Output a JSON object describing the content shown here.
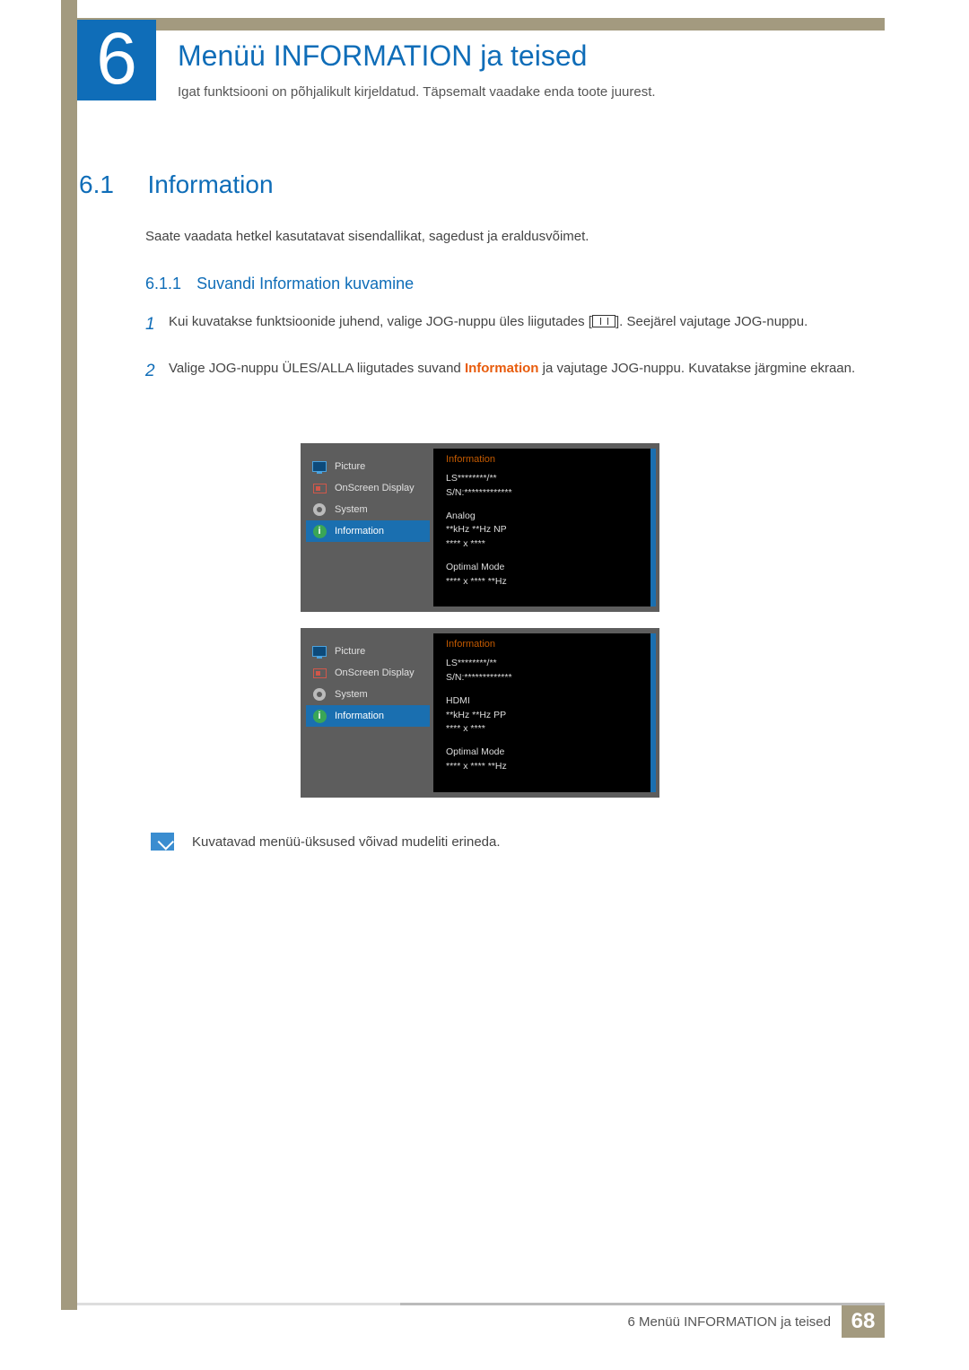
{
  "colors": {
    "accent_blue": "#0f6db8",
    "khaki": "#a39a7f",
    "orange": "#e85c0c",
    "osd_bg": "#5d5d5d",
    "osd_panel": "#000000",
    "osd_sel": "#1a6fb0",
    "osd_title": "#c45a00"
  },
  "chapter": {
    "number": "6",
    "title": "Menüü INFORMATION ja teised",
    "subtitle": "Igat funktsiooni on põhjalikult kirjeldatud. Täpsemalt vaadake enda toote juurest."
  },
  "section": {
    "number": "6.1",
    "title": "Information",
    "intro": "Saate vaadata hetkel kasutatavat sisendallikat, sagedust ja eraldusvõimet."
  },
  "subsection": {
    "number": "6.1.1",
    "title": "Suvandi Information kuvamine"
  },
  "steps": [
    {
      "n": "1",
      "pre": "Kui kuvatakse funktsioonide juhend, valige JOG-nuppu üles liigutades [",
      "post": "]. Seejärel vajutage JOG-nuppu."
    },
    {
      "n": "2",
      "pre": "Valige JOG-nuppu ÜLES/ALLA liigutades suvand ",
      "hl": "Information",
      "post": " ja vajutage JOG-nuppu. Kuvatakse järgmine ekraan."
    }
  ],
  "osd": {
    "menu": [
      {
        "label": "Picture",
        "icon": "monitor"
      },
      {
        "label": "OnScreen Display",
        "icon": "osd"
      },
      {
        "label": "System",
        "icon": "gear"
      },
      {
        "label": "Information",
        "icon": "info",
        "selected": true
      }
    ],
    "panels": [
      {
        "title": "Information",
        "lines": {
          "model": "LS********/**",
          "serial": "S/N:*************",
          "source": "Analog",
          "freq": "**kHz **Hz NP",
          "res": "**** x ****",
          "mode_label": "Optimal Mode",
          "mode_val": "**** x **** **Hz"
        }
      },
      {
        "title": "Information",
        "lines": {
          "model": "LS********/**",
          "serial": "S/N:*************",
          "source": "HDMI",
          "freq": "**kHz **Hz PP",
          "res": "**** x ****",
          "mode_label": "Optimal Mode",
          "mode_val": "**** x **** **Hz"
        }
      }
    ]
  },
  "note": "Kuvatavad menüü-üksused võivad mudeliti erineda.",
  "footer": {
    "text": "6 Menüü INFORMATION ja teised",
    "page": "68"
  }
}
